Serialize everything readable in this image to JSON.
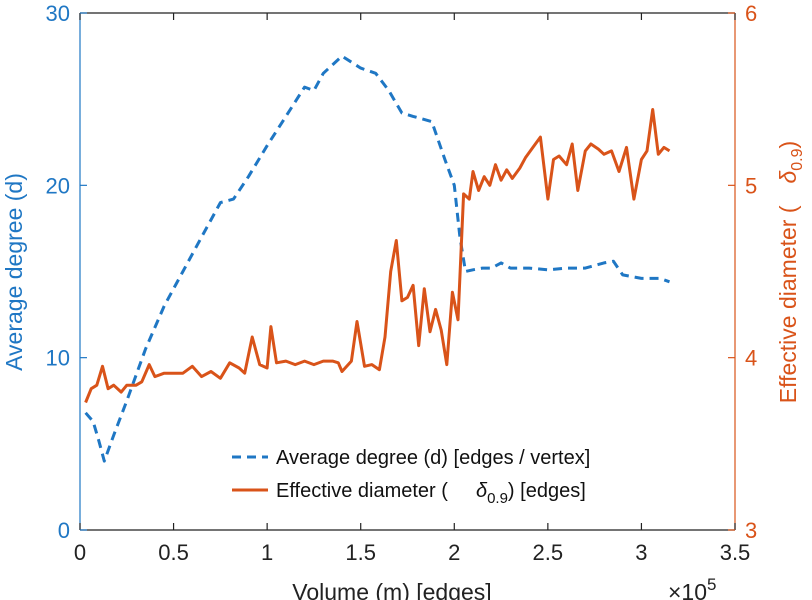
{
  "chart_data": {
    "type": "line",
    "title": "",
    "xlabel": "Volume (m) [edges]",
    "x_exponent_label": "×10",
    "x_exponent_power": "5",
    "xlim": [
      0,
      3.5
    ],
    "x_ticks": [
      0,
      0.5,
      1,
      1.5,
      2,
      2.5,
      3,
      3.5
    ],
    "x_tick_labels": [
      "0",
      "0.5",
      "1",
      "1.5",
      "2",
      "2.5",
      "3",
      "3.5"
    ],
    "left_axis": {
      "label": "Average degree (d)",
      "ylim": [
        0,
        30
      ],
      "ticks": [
        0,
        10,
        20,
        30
      ],
      "tick_labels": [
        "0",
        "10",
        "20",
        "30"
      ],
      "color": "#1f77c4"
    },
    "right_axis": {
      "label_prefix": "Effective diameter (",
      "label_symbol": "δ",
      "label_subscript": "0.9",
      "label_suffix": ")",
      "ylim": [
        3,
        6
      ],
      "ticks": [
        3,
        4,
        5,
        6
      ],
      "tick_labels": [
        "3",
        "4",
        "5",
        "6"
      ],
      "color": "#d95319"
    },
    "series": [
      {
        "name": "Average degree (d) [edges / vertex]",
        "axis": "left",
        "style": "dashed",
        "color": "#1f77c4",
        "x": [
          0.03,
          0.07,
          0.1,
          0.13,
          0.18,
          0.25,
          0.35,
          0.45,
          0.55,
          0.65,
          0.75,
          0.82,
          0.9,
          1.0,
          1.1,
          1.2,
          1.25,
          1.3,
          1.4,
          1.5,
          1.58,
          1.65,
          1.72,
          1.78,
          1.88,
          1.95,
          2.0,
          2.03,
          2.06,
          2.1,
          2.15,
          2.2,
          2.25,
          2.3,
          2.4,
          2.5,
          2.6,
          2.7,
          2.8,
          2.85,
          2.9,
          3.0,
          3.1,
          3.15
        ],
        "y": [
          6.8,
          6.3,
          5.2,
          4.0,
          5.5,
          7.5,
          10.5,
          13.0,
          15.0,
          17.0,
          19.0,
          19.2,
          20.5,
          22.3,
          24.0,
          25.7,
          25.5,
          26.5,
          27.5,
          26.8,
          26.5,
          25.5,
          24.2,
          24.0,
          23.7,
          21.5,
          20.0,
          17.0,
          15.0,
          15.1,
          15.2,
          15.2,
          15.5,
          15.2,
          15.2,
          15.1,
          15.2,
          15.2,
          15.5,
          15.6,
          14.8,
          14.6,
          14.6,
          14.4
        ]
      },
      {
        "name": "Effective diameter (δ0.9) [edges]",
        "legend_prefix": "Effective diameter (",
        "legend_symbol": "δ",
        "legend_subscript": "0.9",
        "legend_suffix": ") [edges]",
        "axis": "right",
        "style": "solid",
        "color": "#d95319",
        "x": [
          0.03,
          0.06,
          0.09,
          0.12,
          0.15,
          0.18,
          0.22,
          0.25,
          0.3,
          0.33,
          0.37,
          0.4,
          0.45,
          0.5,
          0.55,
          0.6,
          0.65,
          0.7,
          0.75,
          0.8,
          0.85,
          0.88,
          0.92,
          0.96,
          1.0,
          1.02,
          1.05,
          1.1,
          1.15,
          1.2,
          1.25,
          1.3,
          1.35,
          1.38,
          1.4,
          1.45,
          1.48,
          1.52,
          1.56,
          1.6,
          1.63,
          1.66,
          1.69,
          1.72,
          1.75,
          1.78,
          1.81,
          1.84,
          1.87,
          1.9,
          1.93,
          1.96,
          1.99,
          2.02,
          2.05,
          2.08,
          2.1,
          2.13,
          2.16,
          2.19,
          2.22,
          2.25,
          2.28,
          2.31,
          2.35,
          2.38,
          2.42,
          2.46,
          2.5,
          2.53,
          2.56,
          2.6,
          2.63,
          2.66,
          2.7,
          2.73,
          2.77,
          2.8,
          2.84,
          2.88,
          2.92,
          2.96,
          3.0,
          3.03,
          3.06,
          3.09,
          3.12,
          3.15
        ],
        "y": [
          3.74,
          3.82,
          3.84,
          3.95,
          3.82,
          3.84,
          3.8,
          3.84,
          3.84,
          3.86,
          3.96,
          3.89,
          3.91,
          3.91,
          3.91,
          3.95,
          3.89,
          3.92,
          3.88,
          3.97,
          3.94,
          3.91,
          4.12,
          3.96,
          3.94,
          4.18,
          3.97,
          3.98,
          3.96,
          3.98,
          3.96,
          3.98,
          3.98,
          3.97,
          3.92,
          3.98,
          4.21,
          3.95,
          3.96,
          3.93,
          4.12,
          4.5,
          4.68,
          4.33,
          4.35,
          4.42,
          4.07,
          4.4,
          4.15,
          4.28,
          4.16,
          3.96,
          4.38,
          4.22,
          4.95,
          4.92,
          5.08,
          4.97,
          5.05,
          5.0,
          5.12,
          5.03,
          5.09,
          5.04,
          5.1,
          5.16,
          5.22,
          5.28,
          4.92,
          5.15,
          5.17,
          5.12,
          5.24,
          4.97,
          5.2,
          5.24,
          5.21,
          5.18,
          5.2,
          5.08,
          5.22,
          4.92,
          5.15,
          5.2,
          5.44,
          5.18,
          5.22,
          5.2
        ]
      }
    ],
    "legend": {
      "placement": "bottom-center",
      "entries": [
        "Average degree (d) [edges / vertex]",
        "Effective diameter (δ0.9) [edges]"
      ]
    }
  }
}
